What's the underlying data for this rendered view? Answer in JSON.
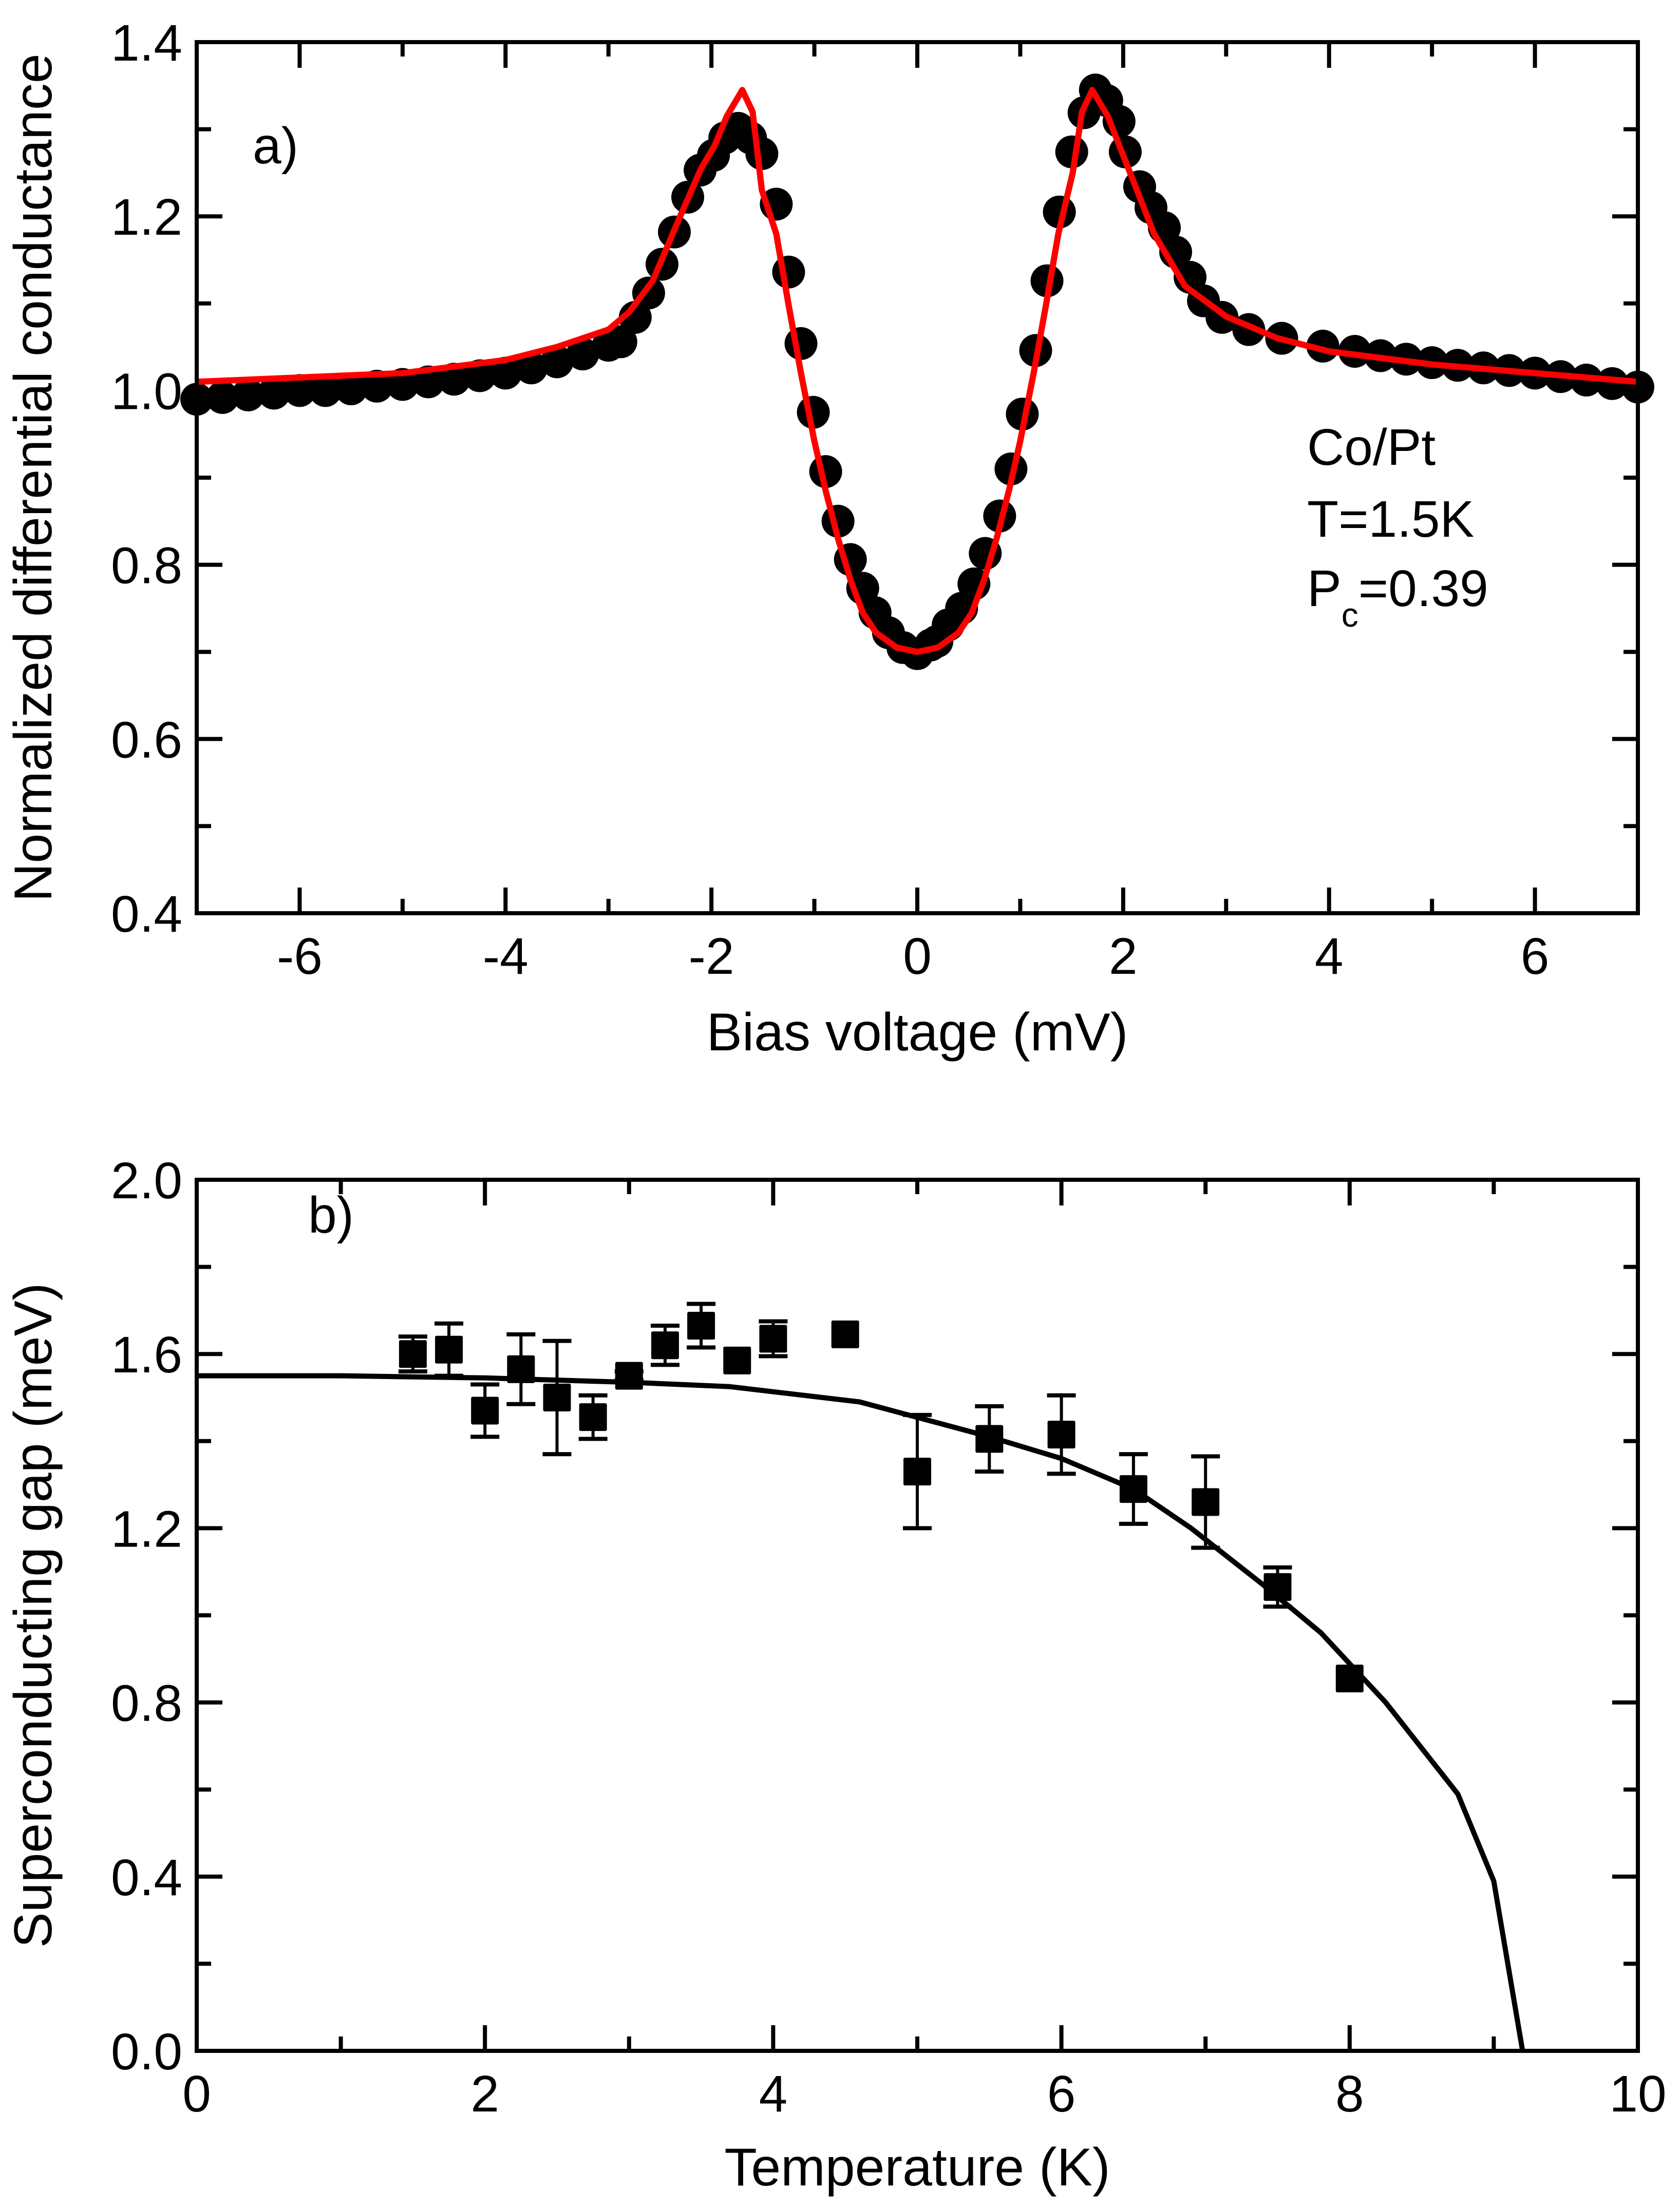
{
  "chart_data": [
    {
      "type": "scatter",
      "panel_label": "a)",
      "xlabel": "Bias voltage (mV)",
      "ylabel": "Normalized differential conductance",
      "xlim": [
        -7,
        7
      ],
      "ylim": [
        0.4,
        1.4
      ],
      "xticks": [
        -6,
        -4,
        -2,
        0,
        2,
        4,
        6
      ],
      "yticks": [
        0.4,
        0.6,
        0.8,
        1.0,
        1.2,
        1.4
      ],
      "grid": false,
      "annotation": {
        "line1": "Co/Pt",
        "line2": "T=1.5K",
        "line3_main": "P",
        "line3_sub": "c",
        "line3_rest": "=0.39"
      },
      "series": [
        {
          "kind": "markers",
          "marker": "circle",
          "color": "#000000",
          "x": [
            -7,
            -6.75,
            -6.5,
            -6.25,
            -6,
            -5.75,
            -5.5,
            -5.25,
            -5,
            -4.75,
            -4.5,
            -4.25,
            -4,
            -3.75,
            -3.5,
            -3.25,
            -3,
            -2.88,
            -2.74,
            -2.61,
            -2.48,
            -2.36,
            -2.23,
            -2.11,
            -1.98,
            -1.87,
            -1.74,
            -1.62,
            -1.51,
            -1.37,
            -1.25,
            -1.13,
            -1.01,
            -0.89,
            -0.77,
            -0.65,
            -0.53,
            -0.41,
            -0.28,
            -0.14,
            0,
            0.13,
            0.19,
            0.3,
            0.43,
            0.55,
            0.66,
            0.8,
            0.91,
            1.02,
            1.15,
            1.26,
            1.38,
            1.5,
            1.62,
            1.73,
            1.84,
            1.96,
            2.02,
            2.16,
            2.27,
            2.4,
            2.51,
            2.65,
            2.78,
            2.96,
            3.22,
            3.54,
            3.94,
            4.25,
            4.5,
            4.75,
            5,
            5.25,
            5.5,
            5.75,
            6,
            6.25,
            6.5,
            6.75,
            7
          ],
          "y": [
            0.99,
            0.992,
            0.995,
            0.997,
            1.0,
            1.0,
            1.002,
            1.005,
            1.007,
            1.01,
            1.013,
            1.017,
            1.02,
            1.026,
            1.033,
            1.042,
            1.052,
            1.056,
            1.084,
            1.112,
            1.145,
            1.182,
            1.222,
            1.253,
            1.27,
            1.29,
            1.301,
            1.29,
            1.272,
            1.214,
            1.136,
            1.054,
            0.975,
            0.907,
            0.85,
            0.806,
            0.773,
            0.745,
            0.722,
            0.705,
            0.698,
            0.708,
            0.712,
            0.731,
            0.75,
            0.778,
            0.813,
            0.856,
            0.91,
            0.973,
            1.046,
            1.126,
            1.205,
            1.274,
            1.319,
            1.345,
            1.333,
            1.309,
            1.274,
            1.234,
            1.21,
            1.187,
            1.159,
            1.13,
            1.103,
            1.084,
            1.07,
            1.06,
            1.051,
            1.045,
            1.04,
            1.036,
            1.032,
            1.029,
            1.026,
            1.023,
            1.02,
            1.016,
            1.012,
            1.008,
            1.004
          ]
        },
        {
          "kind": "line",
          "color": "#ff0000",
          "x": [
            -7,
            -6,
            -5,
            -4,
            -3.5,
            -3,
            -2.8,
            -2.57,
            -2.3,
            -2.1,
            -1.97,
            -1.85,
            -1.7,
            -1.6,
            -1.51,
            -1.37,
            -1.25,
            -1.13,
            -1.0,
            -0.89,
            -0.77,
            -0.65,
            -0.53,
            -0.4,
            -0.2,
            0,
            0.2,
            0.4,
            0.53,
            0.65,
            0.77,
            0.89,
            1.0,
            1.13,
            1.25,
            1.37,
            1.51,
            1.6,
            1.7,
            1.85,
            2.0,
            2.3,
            2.6,
            3.0,
            3.5,
            4,
            5,
            6,
            7
          ],
          "y": [
            1.01,
            1.015,
            1.02,
            1.035,
            1.05,
            1.07,
            1.09,
            1.126,
            1.201,
            1.255,
            1.281,
            1.315,
            1.345,
            1.32,
            1.23,
            1.18,
            1.098,
            1.02,
            0.942,
            0.885,
            0.83,
            0.783,
            0.745,
            0.722,
            0.705,
            0.7,
            0.705,
            0.722,
            0.745,
            0.783,
            0.83,
            0.885,
            0.942,
            1.02,
            1.098,
            1.18,
            1.25,
            1.32,
            1.345,
            1.315,
            1.27,
            1.18,
            1.12,
            1.085,
            1.06,
            1.045,
            1.03,
            1.02,
            1.01
          ]
        }
      ]
    },
    {
      "type": "scatter",
      "panel_label": "b)",
      "xlabel": "Temperature (K)",
      "ylabel": "Superconducting gap (meV)",
      "xlim": [
        0,
        10
      ],
      "ylim": [
        0.0,
        2.0
      ],
      "xticks": [
        0,
        2,
        4,
        6,
        8,
        10
      ],
      "yticks": [
        0.0,
        0.4,
        0.8,
        1.2,
        1.6,
        2.0
      ],
      "grid": false,
      "series": [
        {
          "kind": "markers",
          "marker": "square",
          "color": "#000000",
          "x": [
            1.5,
            1.75,
            2.0,
            2.25,
            2.5,
            2.75,
            3.0,
            3.25,
            3.5,
            3.75,
            4.0,
            4.5,
            5.0,
            5.5,
            6.0,
            6.5,
            7.0,
            7.5,
            8.0
          ],
          "y": [
            1.6,
            1.61,
            1.47,
            1.565,
            1.5,
            1.455,
            1.55,
            1.62,
            1.665,
            1.585,
            1.635,
            1.645,
            1.33,
            1.405,
            1.415,
            1.29,
            1.26,
            1.065,
            0.855
          ],
          "err": [
            0.04,
            0.06,
            0.06,
            0.08,
            0.13,
            0.05,
            0.01,
            0.045,
            0.05,
            0,
            0.04,
            0,
            0.13,
            0.075,
            0.09,
            0.08,
            0.105,
            0.045,
            0
          ]
        },
        {
          "kind": "line",
          "color": "#000000",
          "x": [
            0,
            1,
            2,
            3,
            3.7,
            4.6,
            5.5,
            6.0,
            6.5,
            6.9,
            7.4,
            7.8,
            8.25,
            8.75,
            9.0,
            9.2
          ],
          "y": [
            1.55,
            1.55,
            1.545,
            1.535,
            1.525,
            1.49,
            1.41,
            1.36,
            1.29,
            1.2,
            1.07,
            0.96,
            0.8,
            0.59,
            0.39,
            0.0
          ]
        }
      ]
    }
  ]
}
